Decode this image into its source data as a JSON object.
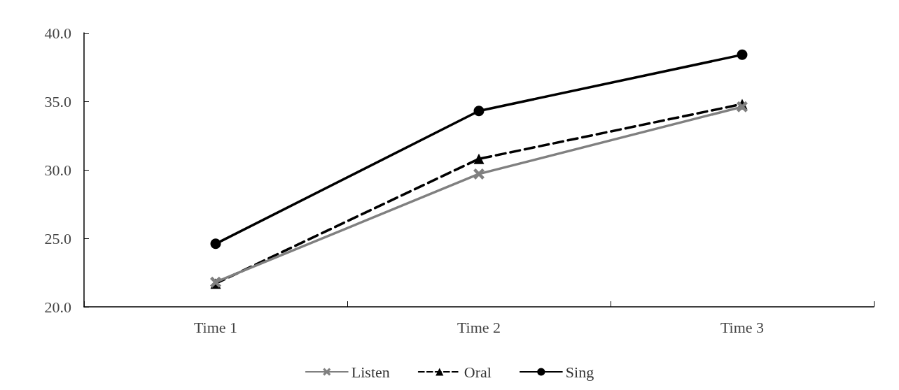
{
  "chart_data": {
    "type": "line",
    "categories": [
      "Time 1",
      "Time 2",
      "Time 3"
    ],
    "series": [
      {
        "name": "Listen",
        "color": "#808080",
        "marker": "cross",
        "line_style": "solid",
        "values": [
          21.8,
          29.7,
          34.6
        ]
      },
      {
        "name": "Oral",
        "color": "#000000",
        "marker": "triangle",
        "line_style": "dashed",
        "values": [
          21.7,
          30.8,
          34.8
        ]
      },
      {
        "name": "Sing",
        "color": "#000000",
        "marker": "circle",
        "line_style": "solid",
        "values": [
          24.6,
          34.3,
          38.4
        ]
      }
    ],
    "ylim": [
      20,
      40
    ],
    "yticks": [
      {
        "value": 20,
        "label": "20.0"
      },
      {
        "value": 25,
        "label": "25.0"
      },
      {
        "value": 30,
        "label": "30.0"
      },
      {
        "value": 35,
        "label": "35.0"
      },
      {
        "value": 40,
        "label": "40.0"
      }
    ],
    "grid": false,
    "legend": "bottom"
  }
}
